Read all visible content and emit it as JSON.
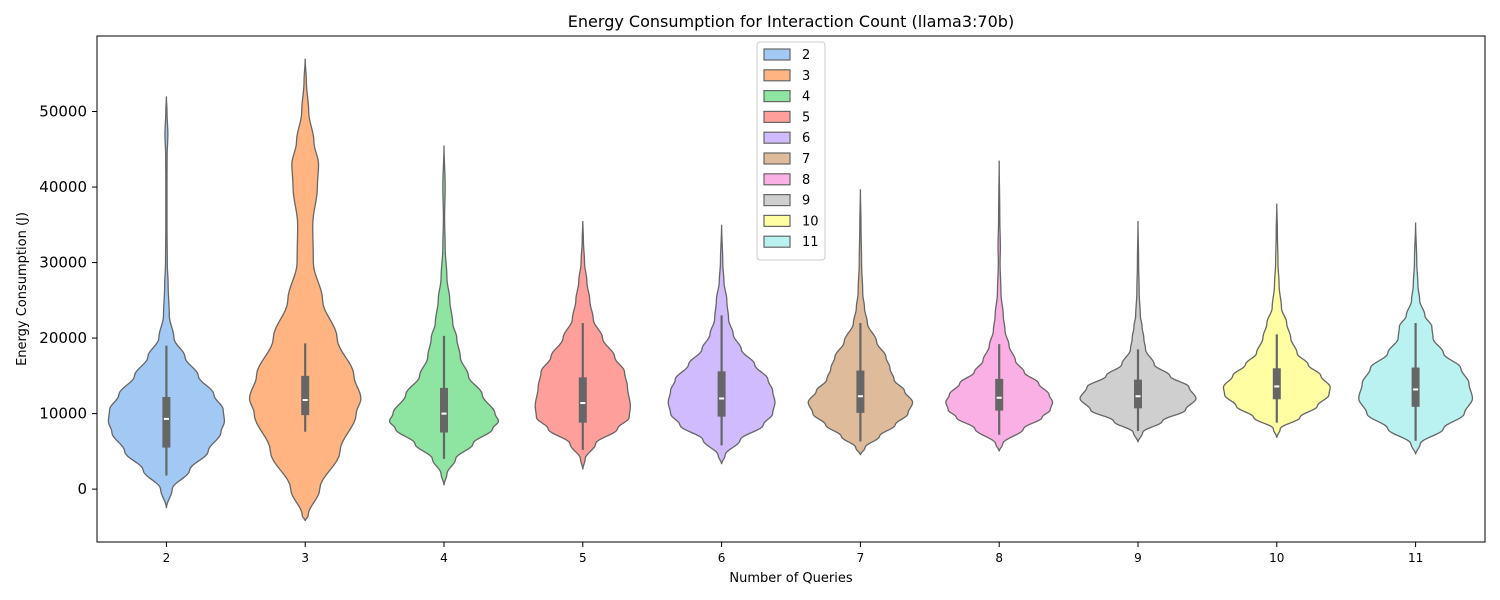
{
  "chart_data": {
    "type": "violin",
    "title": "Energy Consumption for Interaction Count (llama3:70b)",
    "xlabel": "Number of Queries",
    "ylabel": "Energy Consumption (J)",
    "ylim": [
      -7000,
      60000
    ],
    "yticks": [
      0,
      10000,
      20000,
      30000,
      40000,
      50000
    ],
    "categories": [
      "2",
      "3",
      "4",
      "5",
      "6",
      "7",
      "8",
      "9",
      "10",
      "11"
    ],
    "legend": {
      "title": "",
      "position": "top-center"
    },
    "series": [
      {
        "name": "2",
        "color": "#a1c9f4",
        "min": -2500,
        "max": 52000,
        "box": {
          "whisker_low": 1800,
          "q1": 5500,
          "median": 9300,
          "q3": 12200,
          "whisker_high": 19000
        },
        "shape": [
          [
            -2500,
            0.0
          ],
          [
            0,
            0.1
          ],
          [
            2500,
            0.4
          ],
          [
            5000,
            0.72
          ],
          [
            7500,
            0.94
          ],
          [
            9000,
            1.0
          ],
          [
            10500,
            0.98
          ],
          [
            12500,
            0.82
          ],
          [
            15000,
            0.55
          ],
          [
            17500,
            0.32
          ],
          [
            20000,
            0.13
          ],
          [
            23000,
            0.05
          ],
          [
            27000,
            0.03
          ],
          [
            30000,
            0.015
          ],
          [
            35000,
            0.01
          ],
          [
            40000,
            0.01
          ],
          [
            44000,
            0.012
          ],
          [
            47000,
            0.025
          ],
          [
            50000,
            0.01
          ],
          [
            52000,
            0.0
          ]
        ]
      },
      {
        "name": "3",
        "color": "#ffb482",
        "min": -4200,
        "max": 57000,
        "box": {
          "whisker_low": 7600,
          "q1": 9800,
          "median": 11800,
          "q3": 15000,
          "whisker_high": 19300
        },
        "shape": [
          [
            -4200,
            0.0
          ],
          [
            -3500,
            0.05
          ],
          [
            0,
            0.25
          ],
          [
            5000,
            0.6
          ],
          [
            10000,
            0.88
          ],
          [
            12000,
            0.96
          ],
          [
            15000,
            0.84
          ],
          [
            20000,
            0.55
          ],
          [
            25000,
            0.3
          ],
          [
            30000,
            0.14
          ],
          [
            35000,
            0.13
          ],
          [
            40000,
            0.21
          ],
          [
            43000,
            0.23
          ],
          [
            46000,
            0.15
          ],
          [
            50000,
            0.06
          ],
          [
            54000,
            0.02
          ],
          [
            57000,
            0.0
          ]
        ]
      },
      {
        "name": "4",
        "color": "#8de5a1",
        "min": 500,
        "max": 45500,
        "box": {
          "whisker_low": 4000,
          "q1": 7500,
          "median": 10000,
          "q3": 13400,
          "whisker_high": 20300
        },
        "shape": [
          [
            500,
            0.0
          ],
          [
            2000,
            0.05
          ],
          [
            4000,
            0.2
          ],
          [
            6000,
            0.5
          ],
          [
            8000,
            0.84
          ],
          [
            9000,
            0.94
          ],
          [
            10000,
            0.88
          ],
          [
            12500,
            0.66
          ],
          [
            15000,
            0.42
          ],
          [
            17500,
            0.28
          ],
          [
            20000,
            0.22
          ],
          [
            22000,
            0.15
          ],
          [
            25000,
            0.1
          ],
          [
            28000,
            0.05
          ],
          [
            32000,
            0.02
          ],
          [
            36000,
            0.01
          ],
          [
            40000,
            0.02
          ],
          [
            45500,
            0.0
          ]
        ]
      },
      {
        "name": "5",
        "color": "#ff9f9b",
        "min": 2600,
        "max": 35500,
        "box": {
          "whisker_low": 5200,
          "q1": 8800,
          "median": 11400,
          "q3": 14800,
          "whisker_high": 22000
        },
        "shape": [
          [
            2600,
            0.0
          ],
          [
            4000,
            0.04
          ],
          [
            6000,
            0.22
          ],
          [
            8000,
            0.6
          ],
          [
            9500,
            0.8
          ],
          [
            11000,
            0.82
          ],
          [
            13500,
            0.77
          ],
          [
            15500,
            0.72
          ],
          [
            17500,
            0.55
          ],
          [
            20000,
            0.34
          ],
          [
            22500,
            0.18
          ],
          [
            25000,
            0.12
          ],
          [
            27500,
            0.07
          ],
          [
            30000,
            0.03
          ],
          [
            33000,
            0.01
          ],
          [
            35500,
            0.0
          ]
        ]
      },
      {
        "name": "6",
        "color": "#d0bbff",
        "min": 3300,
        "max": 35000,
        "box": {
          "whisker_low": 5800,
          "q1": 9600,
          "median": 12000,
          "q3": 15600,
          "whisker_high": 23000
        },
        "shape": [
          [
            3300,
            0.0
          ],
          [
            4500,
            0.06
          ],
          [
            6500,
            0.32
          ],
          [
            8500,
            0.72
          ],
          [
            10000,
            0.88
          ],
          [
            11500,
            0.92
          ],
          [
            13000,
            0.88
          ],
          [
            14500,
            0.8
          ],
          [
            16500,
            0.57
          ],
          [
            18500,
            0.34
          ],
          [
            20500,
            0.2
          ],
          [
            22500,
            0.12
          ],
          [
            25000,
            0.09
          ],
          [
            27500,
            0.04
          ],
          [
            30000,
            0.02
          ],
          [
            35000,
            0.0
          ]
        ]
      },
      {
        "name": "7",
        "color": "#debb9b",
        "min": 4500,
        "max": 39700,
        "box": {
          "whisker_low": 6300,
          "q1": 10100,
          "median": 12300,
          "q3": 15700,
          "whisker_high": 22000
        },
        "shape": [
          [
            4500,
            0.0
          ],
          [
            5500,
            0.08
          ],
          [
            7000,
            0.33
          ],
          [
            8500,
            0.6
          ],
          [
            10000,
            0.82
          ],
          [
            11500,
            0.9
          ],
          [
            13000,
            0.76
          ],
          [
            14500,
            0.58
          ],
          [
            16000,
            0.51
          ],
          [
            17500,
            0.44
          ],
          [
            19500,
            0.28
          ],
          [
            22000,
            0.12
          ],
          [
            24000,
            0.07
          ],
          [
            26000,
            0.04
          ],
          [
            30000,
            0.02
          ],
          [
            35000,
            0.01
          ],
          [
            39700,
            0.0
          ]
        ]
      },
      {
        "name": "8",
        "color": "#fab0e4",
        "min": 5000,
        "max": 43500,
        "box": {
          "whisker_low": 7200,
          "q1": 10400,
          "median": 12100,
          "q3": 14600,
          "whisker_high": 19200
        },
        "shape": [
          [
            5000,
            0.0
          ],
          [
            6000,
            0.06
          ],
          [
            8000,
            0.42
          ],
          [
            9500,
            0.74
          ],
          [
            10500,
            0.88
          ],
          [
            11500,
            0.92
          ],
          [
            12500,
            0.86
          ],
          [
            14000,
            0.68
          ],
          [
            15500,
            0.43
          ],
          [
            17000,
            0.28
          ],
          [
            19000,
            0.17
          ],
          [
            21000,
            0.1
          ],
          [
            23000,
            0.07
          ],
          [
            26000,
            0.03
          ],
          [
            30000,
            0.015
          ],
          [
            32000,
            0.02
          ],
          [
            36000,
            0.01
          ],
          [
            43500,
            0.0
          ]
        ]
      },
      {
        "name": "9",
        "color": "#cfcfcf",
        "min": 6200,
        "max": 35500,
        "box": {
          "whisker_low": 7700,
          "q1": 10700,
          "median": 12300,
          "q3": 14500,
          "whisker_high": 18500
        },
        "shape": [
          [
            6200,
            0.0
          ],
          [
            7500,
            0.08
          ],
          [
            9000,
            0.42
          ],
          [
            10500,
            0.82
          ],
          [
            12000,
            1.0
          ],
          [
            13500,
            0.88
          ],
          [
            15000,
            0.55
          ],
          [
            16500,
            0.28
          ],
          [
            18500,
            0.13
          ],
          [
            20000,
            0.1
          ],
          [
            21500,
            0.07
          ],
          [
            23000,
            0.04
          ],
          [
            26000,
            0.02
          ],
          [
            30000,
            0.01
          ],
          [
            35500,
            0.0
          ]
        ]
      },
      {
        "name": "10",
        "color": "#fffea3",
        "min": 6800,
        "max": 37800,
        "box": {
          "whisker_low": 8800,
          "q1": 11900,
          "median": 13600,
          "q3": 16000,
          "whisker_high": 20500
        },
        "shape": [
          [
            6800,
            0.0
          ],
          [
            8000,
            0.06
          ],
          [
            9500,
            0.4
          ],
          [
            11000,
            0.7
          ],
          [
            12500,
            0.9
          ],
          [
            13500,
            0.92
          ],
          [
            15000,
            0.76
          ],
          [
            16500,
            0.54
          ],
          [
            18000,
            0.35
          ],
          [
            20000,
            0.24
          ],
          [
            22000,
            0.17
          ],
          [
            24000,
            0.08
          ],
          [
            27000,
            0.04
          ],
          [
            30000,
            0.02
          ],
          [
            34000,
            0.01
          ],
          [
            37800,
            0.0
          ]
        ]
      },
      {
        "name": "11",
        "color": "#b9f2f0",
        "min": 4600,
        "max": 35300,
        "box": {
          "whisker_low": 6400,
          "q1": 10900,
          "median": 13200,
          "q3": 16100,
          "whisker_high": 22000
        },
        "shape": [
          [
            4600,
            0.0
          ],
          [
            6000,
            0.08
          ],
          [
            8000,
            0.48
          ],
          [
            10000,
            0.84
          ],
          [
            12000,
            0.98
          ],
          [
            14000,
            0.92
          ],
          [
            16000,
            0.78
          ],
          [
            18000,
            0.48
          ],
          [
            20000,
            0.3
          ],
          [
            21500,
            0.28
          ],
          [
            23000,
            0.16
          ],
          [
            25000,
            0.07
          ],
          [
            27000,
            0.04
          ],
          [
            30000,
            0.02
          ],
          [
            35300,
            0.0
          ]
        ]
      }
    ]
  }
}
